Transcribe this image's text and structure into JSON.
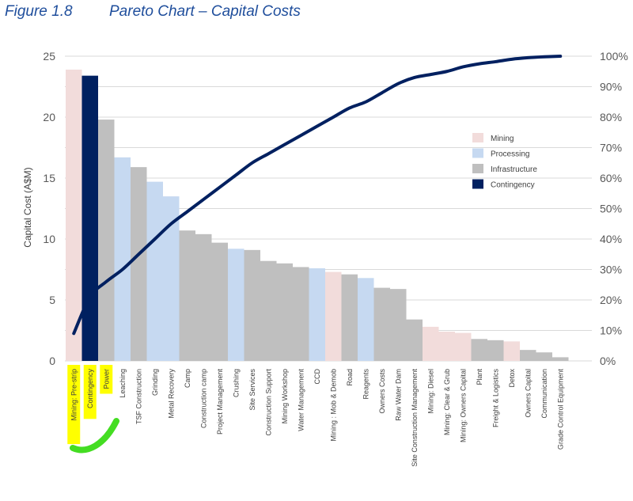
{
  "figure": {
    "number": "Figure 1.8",
    "title": "Pareto Chart – Capital Costs"
  },
  "chart_data": {
    "type": "bar",
    "title": "Pareto Chart – Capital Costs",
    "xlabel": "",
    "ylabel": "Capital Cost (A$M)",
    "ylim": [
      0,
      25
    ],
    "y_ticks": [
      "0",
      "5",
      "10",
      "15",
      "20",
      "25"
    ],
    "y2lim": [
      0,
      100
    ],
    "y2_ticks": [
      "0%",
      "10%",
      "20%",
      "30%",
      "40%",
      "50%",
      "60%",
      "70%",
      "80%",
      "90%",
      "100%"
    ],
    "legend_position": "right",
    "colors": {
      "Mining": "#f2dcdb",
      "Processing": "#c6d9f1",
      "Infrastructure": "#bfbfbf",
      "Contingency": "#002060",
      "cumulative_line": "#002060"
    },
    "legend": [
      "Mining",
      "Processing",
      "Infrastructure",
      "Contingency"
    ],
    "categories": [
      "Mining: Pre-strip",
      "Contingency",
      "Power",
      "Leaching",
      "TSF Construction",
      "Grinding",
      "Metal Recovery",
      "Camp",
      "Construction camp",
      "Project Management",
      "Crushing",
      "Site Services",
      "Construction Support",
      "Mining Workshop",
      "Water Management",
      "CCD",
      "Mining : Mob & Demob",
      "Road",
      "Reagents",
      "Owners Costs",
      "Raw Water Dam",
      "Site Construction Management",
      "Mining: Diesel",
      "Mining: Clear & Grub",
      "Mining: Owners Capital",
      "Plant",
      "Freight & Logistics",
      "Detox",
      "Owners Capital",
      "Communication",
      "Grade Control Equipment"
    ],
    "groups": [
      "Mining",
      "Contingency",
      "Infrastructure",
      "Processing",
      "Infrastructure",
      "Processing",
      "Processing",
      "Infrastructure",
      "Infrastructure",
      "Infrastructure",
      "Processing",
      "Infrastructure",
      "Infrastructure",
      "Infrastructure",
      "Infrastructure",
      "Processing",
      "Mining",
      "Infrastructure",
      "Processing",
      "Infrastructure",
      "Infrastructure",
      "Infrastructure",
      "Mining",
      "Mining",
      "Mining",
      "Infrastructure",
      "Infrastructure",
      "Mining",
      "Infrastructure",
      "Infrastructure",
      "Infrastructure"
    ],
    "values": [
      23.9,
      23.4,
      19.8,
      16.7,
      15.9,
      14.7,
      13.5,
      10.7,
      10.4,
      9.7,
      9.2,
      9.1,
      8.2,
      8.0,
      7.7,
      7.6,
      7.3,
      7.1,
      6.8,
      6.0,
      5.9,
      3.4,
      2.8,
      2.4,
      2.3,
      1.8,
      1.7,
      1.6,
      0.9,
      0.7,
      0.3
    ],
    "cumulative_percent": [
      9,
      21,
      26,
      30,
      35,
      40,
      45,
      49,
      53,
      57,
      61,
      65,
      68,
      71,
      74,
      77,
      80,
      83,
      85,
      88,
      91,
      93,
      94,
      95,
      96.5,
      97.5,
      98.2,
      99,
      99.5,
      99.8,
      100
    ]
  },
  "annotations": {
    "highlighted_labels": [
      "Mining: Pre-strip",
      "Contingency",
      "Power"
    ],
    "highlight_color": "#ffff00",
    "pen_stroke_color": "#44dd22"
  }
}
